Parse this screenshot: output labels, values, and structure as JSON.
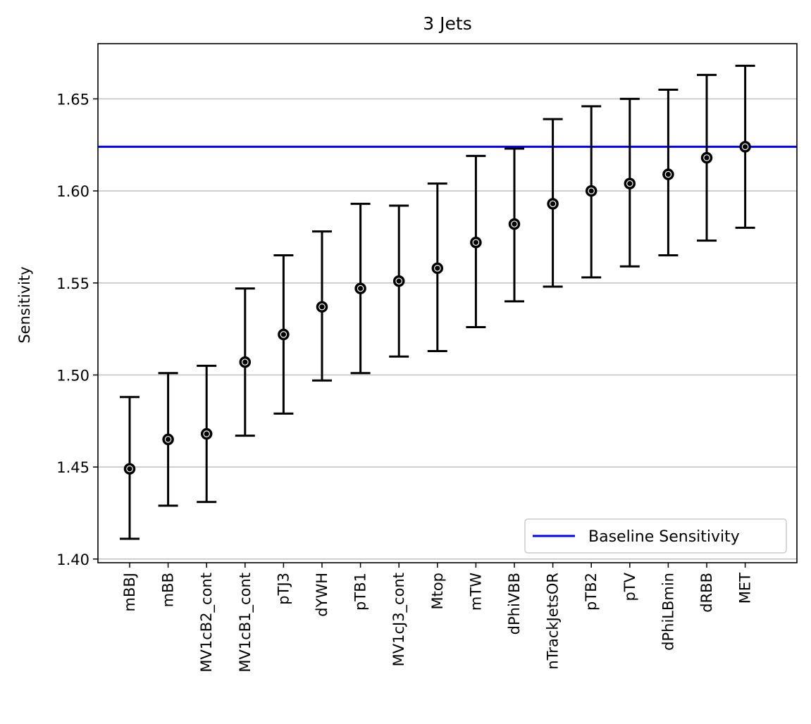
{
  "chart_data": {
    "type": "scatter",
    "title": "3 Jets",
    "xlabel": "",
    "ylabel": "Sensitivity",
    "ylim": [
      1.398,
      1.68
    ],
    "yticks": [
      1.4,
      1.45,
      1.5,
      1.55,
      1.6,
      1.65
    ],
    "ytick_labels": [
      "1.40",
      "1.45",
      "1.50",
      "1.55",
      "1.60",
      "1.65"
    ],
    "grid": "horizontal",
    "legend_placement": "bottom-right",
    "categories": [
      "mBBJ",
      "mBB",
      "MV1cB2_cont",
      "MV1cB1_cont",
      "pTJ3",
      "dYWH",
      "pTB1",
      "MV1cJ3_cont",
      "Mtop",
      "mTW",
      "dPhiVBB",
      "nTrackJetsOR",
      "pTB2",
      "pTV",
      "dPhiLBmin",
      "dRBB",
      "MET"
    ],
    "values": [
      1.449,
      1.465,
      1.468,
      1.507,
      1.522,
      1.537,
      1.547,
      1.551,
      1.558,
      1.572,
      1.582,
      1.593,
      1.6,
      1.604,
      1.609,
      1.618,
      1.624
    ],
    "error_low": [
      1.411,
      1.429,
      1.431,
      1.467,
      1.479,
      1.497,
      1.501,
      1.51,
      1.513,
      1.526,
      1.54,
      1.548,
      1.553,
      1.559,
      1.565,
      1.573,
      1.58
    ],
    "error_high": [
      1.488,
      1.501,
      1.505,
      1.547,
      1.565,
      1.578,
      1.593,
      1.592,
      1.604,
      1.619,
      1.623,
      1.639,
      1.646,
      1.65,
      1.655,
      1.663,
      1.668
    ],
    "baseline": {
      "name": "Baseline Sensitivity",
      "value": 1.624,
      "color": "#0000ff"
    },
    "marker_color": "#000000",
    "grid_color": "#c0c0c0"
  }
}
